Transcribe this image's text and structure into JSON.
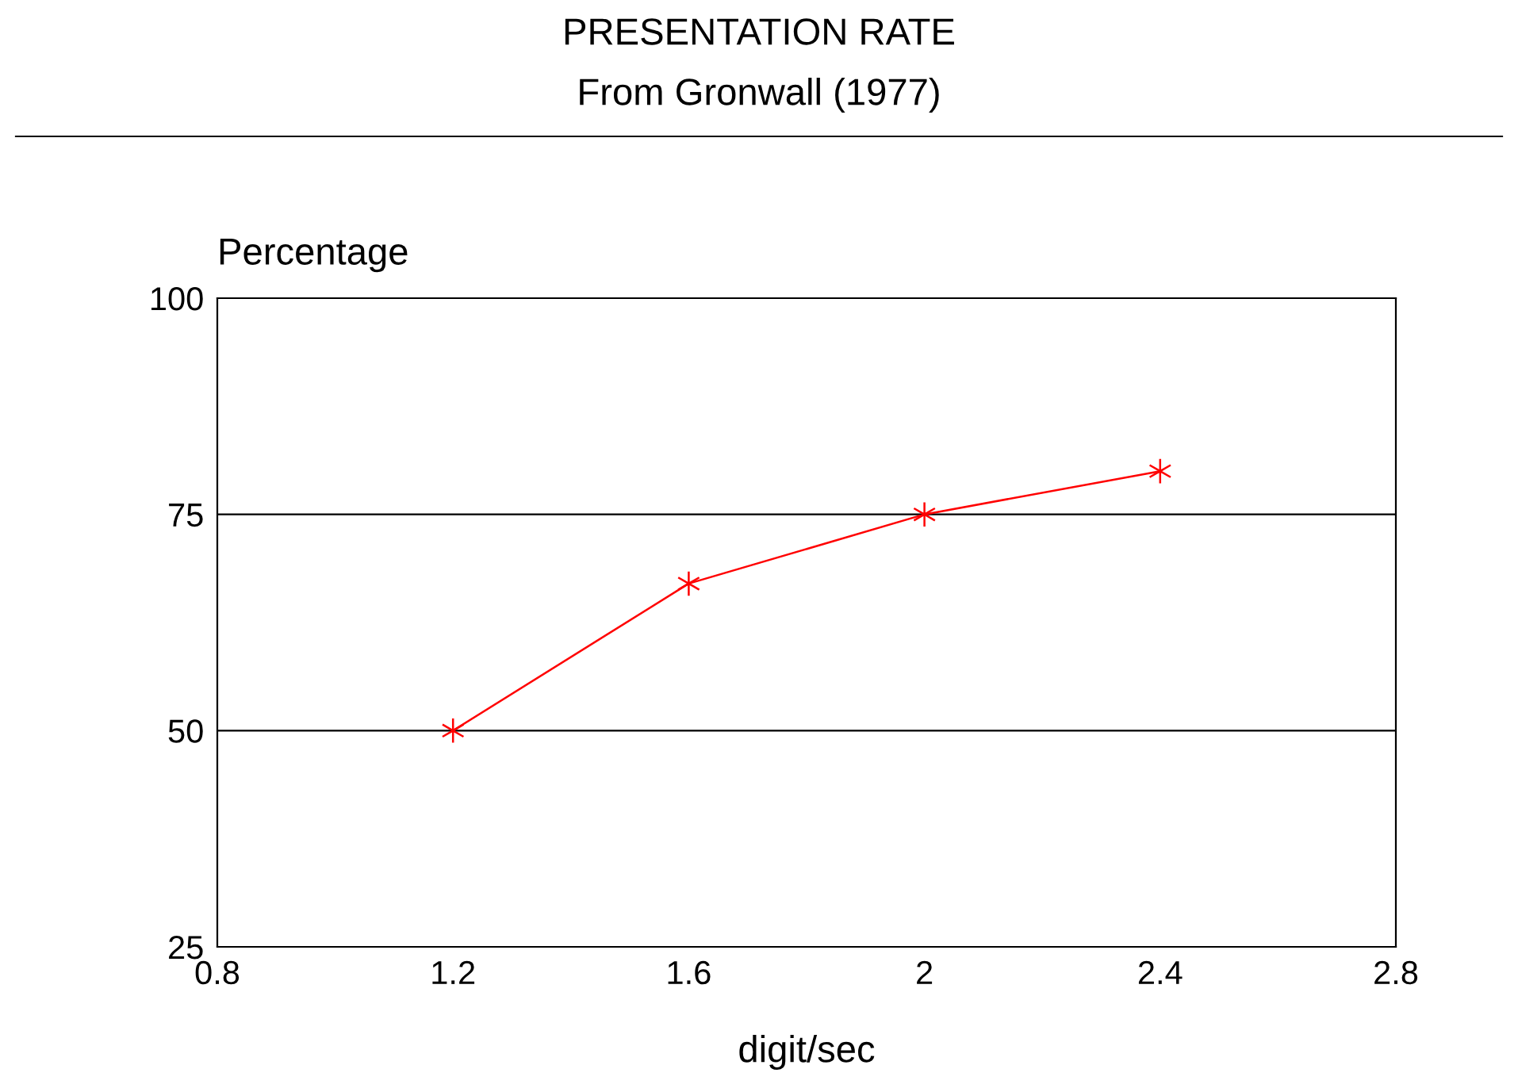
{
  "chart_data": {
    "type": "line",
    "title": "PRESENTATION RATE",
    "subtitle": "From Gronwall (1977)",
    "xlabel": "digit/sec",
    "ylabel": "Percentage",
    "x": [
      1.2,
      1.6,
      2,
      2.4
    ],
    "series": [
      {
        "color": "#ff0000",
        "values": [
          50,
          67,
          75,
          80
        ]
      }
    ],
    "xlim": [
      0.8,
      2.8
    ],
    "xticks": [
      0.8,
      1.2,
      1.6,
      2,
      2.4,
      2.8
    ],
    "ylim": [
      25,
      100
    ],
    "yticks": [
      25,
      50,
      75,
      100
    ],
    "grid": "y",
    "marker": "cross",
    "line_style": "solid"
  }
}
